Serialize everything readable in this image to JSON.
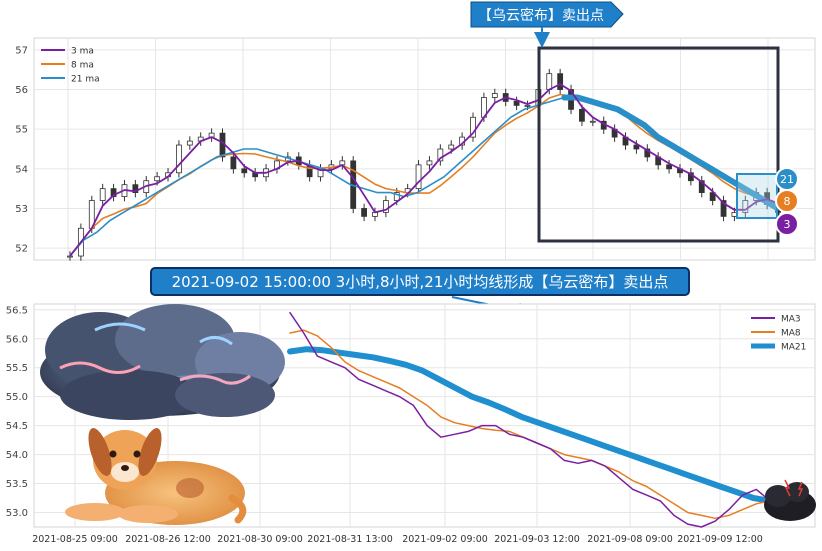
{
  "chart_data": [
    {
      "type": "candlestick+line",
      "title": "",
      "xlabel": "",
      "ylabel": "",
      "ylim": [
        51.7,
        57.3
      ],
      "yticks": [
        52,
        53,
        54,
        55,
        56,
        57
      ],
      "grid": true,
      "legend_position": "top-left",
      "legend": [
        "3 ma",
        "8 ma",
        "21 ma"
      ],
      "series_colors": {
        "3 ma": "#7b1fa2",
        "8 ma": "#e67e22",
        "21 ma": "#2a8fc9"
      },
      "close_series_approx": [
        51.8,
        52.5,
        53.2,
        53.5,
        53.3,
        53.6,
        53.4,
        53.7,
        53.8,
        53.9,
        54.6,
        54.7,
        54.8,
        54.9,
        54.3,
        54.0,
        53.9,
        53.8,
        54.0,
        54.2,
        54.3,
        54.1,
        53.8,
        54.0,
        54.1,
        54.2,
        53.0,
        52.8,
        52.9,
        53.2,
        53.4,
        53.5,
        54.1,
        54.2,
        54.5,
        54.6,
        54.8,
        55.3,
        55.8,
        55.9,
        55.7,
        55.6,
        55.6,
        56.0,
        56.4,
        56.0,
        55.5,
        55.2,
        55.2,
        55.0,
        54.8,
        54.6,
        54.5,
        54.3,
        54.1,
        54.0,
        53.9,
        53.7,
        53.4,
        53.2,
        52.8,
        52.9,
        53.2,
        53.4,
        53.1,
        52.9
      ],
      "ma21_approx": [
        51.8,
        52.2,
        52.4,
        52.7,
        52.9,
        53.1,
        53.3,
        53.5,
        53.7,
        53.9,
        54.1,
        54.3,
        54.4,
        54.5,
        54.5,
        54.4,
        54.3,
        54.2,
        54.1,
        54.0,
        53.8,
        53.6,
        53.5,
        53.4,
        53.4,
        53.3,
        53.4,
        53.6,
        53.8,
        54.1,
        54.4,
        54.7,
        55.0,
        55.3,
        55.5,
        55.6,
        55.7,
        55.8,
        55.8,
        55.7,
        55.6,
        55.5,
        55.3,
        55.1,
        54.8,
        54.6,
        54.4,
        54.2,
        54.0,
        53.8,
        53.6,
        53.4,
        53.2,
        53.0
      ],
      "highlight_box_label": "【乌云密布】卖出点",
      "badges": [
        "21",
        "8",
        "3"
      ]
    },
    {
      "type": "line",
      "title": "",
      "xlabel": "",
      "ylabel": "",
      "ylim": [
        52.75,
        56.6
      ],
      "yticks": [
        53.0,
        53.5,
        54.0,
        54.5,
        55.0,
        55.5,
        56.0,
        56.5
      ],
      "x_tick_labels": [
        "2021-08-25 09:00",
        "2021-08-26 12:00",
        "2021-08-30 09:00",
        "2021-08-31 13:00",
        "2021-09-02 09:00",
        "2021-09-03 12:00",
        "2021-09-08 09:00",
        "2021-09-09 12:00"
      ],
      "grid": true,
      "legend_position": "top-right",
      "series": [
        {
          "name": "MA3",
          "color": "#7b1fa2",
          "values": [
            56.45,
            56.1,
            55.7,
            55.6,
            55.5,
            55.3,
            55.2,
            55.1,
            55.0,
            54.85,
            54.5,
            54.3,
            54.35,
            54.4,
            54.5,
            54.5,
            54.35,
            54.3,
            54.2,
            54.1,
            53.9,
            53.85,
            53.9,
            53.8,
            53.6,
            53.4,
            53.3,
            53.2,
            52.95,
            52.8,
            52.75,
            52.85,
            53.05,
            53.3,
            53.4,
            53.2
          ]
        },
        {
          "name": "MA8",
          "color": "#e67e22",
          "values": [
            56.1,
            56.15,
            56.05,
            55.85,
            55.6,
            55.45,
            55.35,
            55.25,
            55.15,
            55.0,
            54.85,
            54.65,
            54.55,
            54.5,
            54.45,
            54.42,
            54.4,
            54.3,
            54.2,
            54.1,
            54.0,
            53.95,
            53.9,
            53.8,
            53.7,
            53.55,
            53.45,
            53.3,
            53.15,
            53.0,
            52.95,
            52.9,
            52.95,
            53.05,
            53.15,
            53.2
          ]
        },
        {
          "name": "MA21",
          "color": "#1f8fd0",
          "values": [
            55.78,
            55.82,
            55.8,
            55.76,
            55.72,
            55.68,
            55.62,
            55.55,
            55.45,
            55.3,
            55.15,
            55.0,
            54.9,
            54.78,
            54.65,
            54.55,
            54.45,
            54.35,
            54.25,
            54.15,
            54.05,
            53.95,
            53.85,
            53.75,
            53.65,
            53.55,
            53.45,
            53.35,
            53.25,
            53.2
          ]
        }
      ]
    }
  ],
  "annotations": {
    "top_callout": "【乌云密布】卖出点",
    "bottom_callout": "2021-09-02 15:00:00 3小时,8小时,21小时均线形成【乌云密布】卖出点"
  },
  "decorations": [
    "storm-cloud-illustration",
    "dog-illustration",
    "dark-cloud-icon"
  ]
}
